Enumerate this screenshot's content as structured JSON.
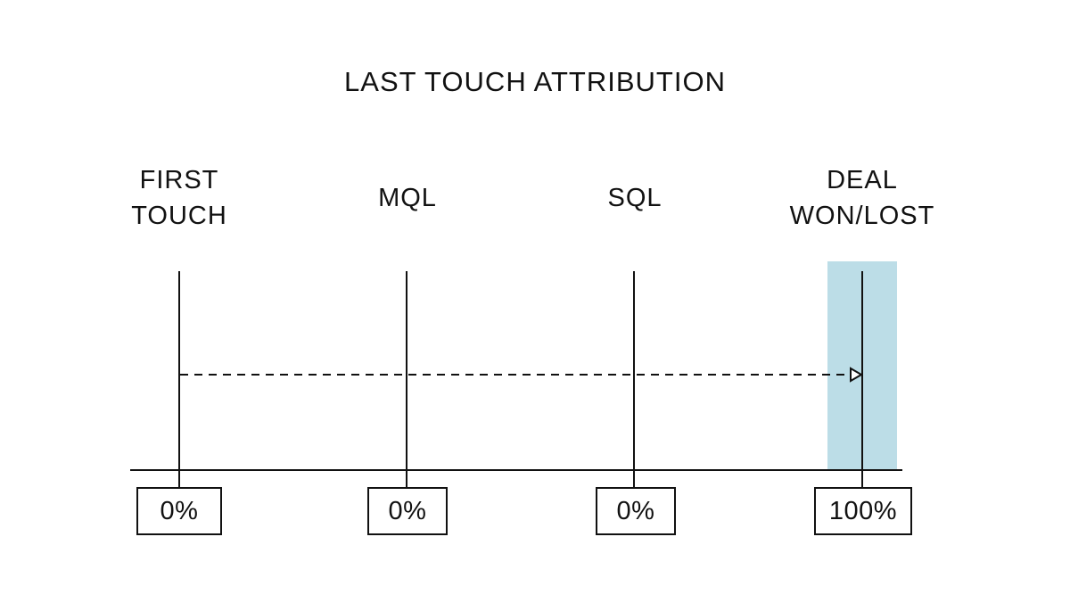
{
  "title": "LAST TOUCH ATTRIBUTION",
  "stages": [
    {
      "label_lines": [
        "FIRST",
        "TOUCH"
      ],
      "percent": "0%",
      "highlighted": false
    },
    {
      "label_lines": [
        "MQL"
      ],
      "percent": "0%",
      "highlighted": false
    },
    {
      "label_lines": [
        "SQL"
      ],
      "percent": "0%",
      "highlighted": false
    },
    {
      "label_lines": [
        "DEAL",
        "WON/LOST"
      ],
      "percent": "100%",
      "highlighted": true
    }
  ],
  "colors": {
    "highlight": "#bcdde7",
    "line": "#111111"
  },
  "arrow": {
    "from_stage": "FIRST TOUCH",
    "to_stage": "DEAL WON/LOST",
    "style": "dashed",
    "head": "open-triangle"
  }
}
